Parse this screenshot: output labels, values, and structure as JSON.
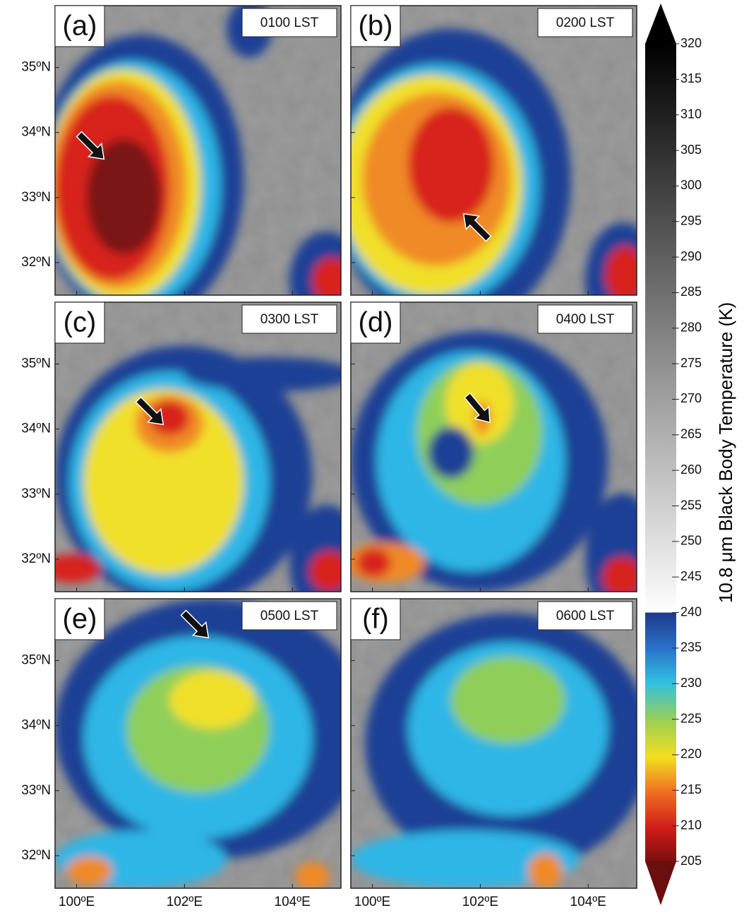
{
  "panels": [
    {
      "letter": "(a)",
      "time": "0100 LST"
    },
    {
      "letter": "(b)",
      "time": "0200 LST"
    },
    {
      "letter": "(c)",
      "time": "0300 LST"
    },
    {
      "letter": "(d)",
      "time": "0400 LST"
    },
    {
      "letter": "(e)",
      "time": "0500 LST"
    },
    {
      "letter": "(f)",
      "time": "0600 LST"
    }
  ],
  "lat_range": [
    31.5,
    35.95
  ],
  "lon_range": [
    99.6,
    104.9
  ],
  "latitude_ticks": [
    {
      "value": 35,
      "label": "35ºN"
    },
    {
      "value": 34,
      "label": "34ºN"
    },
    {
      "value": 33,
      "label": "33ºN"
    },
    {
      "value": 32,
      "label": "32ºN"
    }
  ],
  "longitude_ticks": [
    {
      "value": 100,
      "label": "100ºE"
    },
    {
      "value": 102,
      "label": "102ºE"
    },
    {
      "value": 104,
      "label": "104ºE"
    }
  ],
  "colorbar": {
    "label": "10.8 μm  Black Body Temperature (K)",
    "lim": [
      205,
      320
    ],
    "ticks": [
      205,
      210,
      215,
      220,
      225,
      230,
      235,
      240,
      245,
      250,
      255,
      260,
      265,
      270,
      275,
      280,
      285,
      290,
      295,
      300,
      305,
      310,
      315,
      320
    ]
  }
}
